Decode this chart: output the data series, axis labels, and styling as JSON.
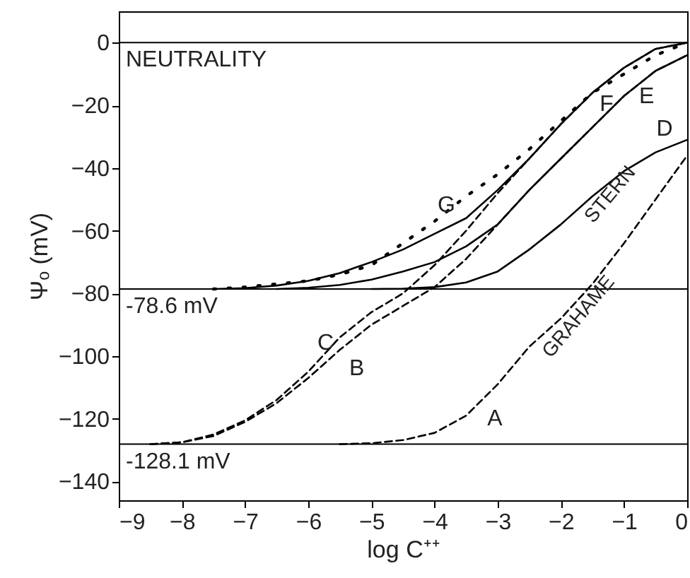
{
  "chart_data": {
    "type": "line",
    "xlabel": "log C⁺⁺",
    "ylabel": "Ψₒ (mV)",
    "xlim": [
      -9,
      0
    ],
    "ylim": [
      -146,
      10
    ],
    "xticks": [
      -9,
      -8,
      -7,
      -6,
      -5,
      -4,
      -3,
      -2,
      -1,
      0
    ],
    "yticks": [
      0,
      -20,
      -40,
      -60,
      -80,
      -100,
      -120,
      -140
    ],
    "grid": false,
    "marker": "none",
    "series": [
      {
        "name": "A",
        "color": "#000000",
        "line_style": "dashed",
        "x": [
          -5.5,
          -5,
          -4.5,
          -4,
          -3.5,
          -3,
          -2.5,
          -2,
          -1.5,
          -1,
          -0.5,
          0
        ],
        "values": [
          -128.1,
          -127.8,
          -126.8,
          -124.5,
          -119,
          -109,
          -97,
          -88,
          -77,
          -64,
          -50,
          -36
        ]
      },
      {
        "name": "B",
        "color": "#000000",
        "line_style": "dashed",
        "x": [
          -8.5,
          -8,
          -7.5,
          -7,
          -6.5,
          -6,
          -5.5,
          -5,
          -4.5,
          -4,
          -3.5,
          -3,
          -2.5,
          -2,
          -1.5,
          -1,
          -0.5,
          0
        ],
        "values": [
          -128.1,
          -127.5,
          -125.5,
          -121,
          -115,
          -107,
          -98,
          -90,
          -84,
          -78,
          -69,
          -58,
          -47,
          -37,
          -27,
          -17,
          -9,
          -4
        ]
      },
      {
        "name": "C",
        "color": "#000000",
        "line_style": "dashed",
        "x": [
          -8.5,
          -8,
          -7.5,
          -7,
          -6.5,
          -6,
          -5.5,
          -5,
          -4.5,
          -4,
          -3.5,
          -3,
          -2.5,
          -2,
          -1.5,
          -1,
          -0.5,
          0
        ],
        "values": [
          -128.1,
          -127.5,
          -125,
          -120.5,
          -114,
          -105,
          -94,
          -86,
          -80,
          -71,
          -60,
          -48,
          -37,
          -26,
          -16,
          -8,
          -2,
          0
        ]
      },
      {
        "name": "D",
        "color": "#000000",
        "line_style": "solid",
        "x": [
          -5,
          -4.5,
          -4,
          -3.5,
          -3,
          -2.5,
          -2,
          -1.5,
          -1,
          -0.5,
          0
        ],
        "values": [
          -78.6,
          -78.5,
          -78,
          -76.5,
          -73,
          -66,
          -58,
          -49,
          -41,
          -35,
          -31
        ]
      },
      {
        "name": "E",
        "color": "#000000",
        "line_style": "solid",
        "x": [
          -6.5,
          -6,
          -5.5,
          -5,
          -4.5,
          -4,
          -3.5,
          -3,
          -2.5,
          -2,
          -1.5,
          -1,
          -0.5,
          0
        ],
        "values": [
          -78.6,
          -78.2,
          -77.3,
          -75.6,
          -73,
          -70,
          -65,
          -58,
          -47,
          -37,
          -27,
          -17,
          -9,
          -4
        ]
      },
      {
        "name": "F",
        "color": "#000000",
        "line_style": "solid",
        "x": [
          -7.5,
          -7,
          -6.5,
          -6,
          -5.5,
          -5,
          -4.5,
          -4,
          -3.5,
          -3,
          -2.5,
          -2,
          -1.5,
          -1,
          -0.5,
          0
        ],
        "values": [
          -78.6,
          -78.3,
          -77.5,
          -76,
          -73.5,
          -70,
          -66,
          -61,
          -56,
          -47,
          -37,
          -26,
          -16,
          -8,
          -2,
          0
        ]
      },
      {
        "name": "G",
        "color": "#000000",
        "line_style": "dotted",
        "x": [
          -7.5,
          -7,
          -6.5,
          -6,
          -5.5,
          -5,
          -4.5,
          -4,
          -3.5,
          -3,
          -2.5,
          -2,
          -1.5,
          -1,
          -0.5,
          0
        ],
        "values": [
          -78.6,
          -78,
          -77,
          -76,
          -74,
          -71,
          -64,
          -57,
          -49,
          -42,
          -34,
          -25,
          -16,
          -10,
          -4,
          0
        ]
      }
    ],
    "ref_lines": [
      {
        "axis": "y",
        "value": 0,
        "label": "NEUTRALITY",
        "color": "#000000"
      },
      {
        "axis": "y",
        "value": -78.6,
        "label": "-78.6 mV",
        "color": "#000000"
      },
      {
        "axis": "y",
        "value": -128.1,
        "label": "-128.1 mV",
        "color": "#000000"
      }
    ],
    "annotations": [
      {
        "text": "STERN",
        "x": -1.5,
        "y": -49
      },
      {
        "text": "GRAHAME",
        "x": -2,
        "y": -88
      }
    ]
  }
}
